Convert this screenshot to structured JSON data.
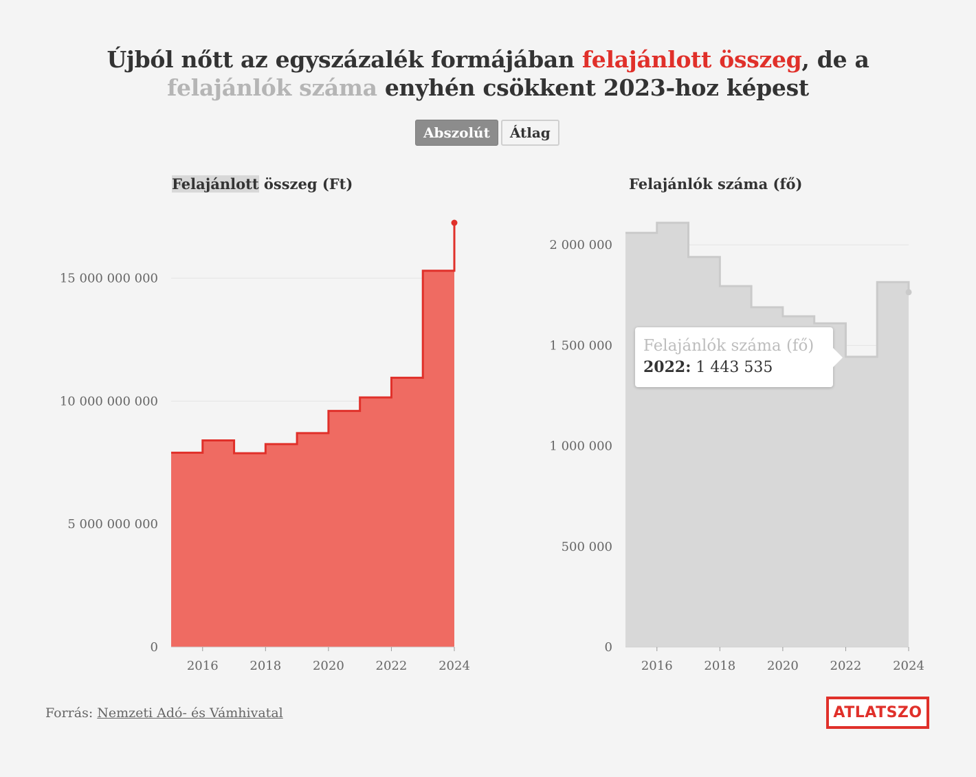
{
  "title": {
    "part1": "Újból nőtt az egyszázalék formájában ",
    "red": "felajánlott összeg",
    "part2": ", de a ",
    "gray": "felajánlók száma",
    "part3": " enyhén csökkent 2023-hoz képest"
  },
  "toggle": {
    "absolute_label": "Abszolút",
    "average_label": "Átlag"
  },
  "colors": {
    "red_line": "#e0302a",
    "red_fill": "#ef6b62",
    "gray_line": "#cacaca",
    "gray_fill": "#d8d8d8"
  },
  "chart_data": [
    {
      "type": "area",
      "step": true,
      "title_highlight": "Felajánlott",
      "title_rest": " összeg (Ft)",
      "x": [
        2015,
        2016,
        2017,
        2018,
        2019,
        2020,
        2021,
        2022,
        2023,
        2024
      ],
      "values": [
        7900000000,
        8400000000,
        7880000000,
        8250000000,
        8700000000,
        9600000000,
        10150000000,
        10950000000,
        15300000000,
        17250000000
      ],
      "ylim": [
        0,
        17250000000
      ],
      "yticks": [
        0,
        5000000000,
        10000000000,
        15000000000
      ],
      "ytick_labels": [
        "0",
        "5 000 000 000",
        "10 000 000 000",
        "15 000 000 000"
      ],
      "xticks": [
        2016,
        2018,
        2020,
        2022,
        2024
      ],
      "xtick_labels": [
        "2016",
        "2018",
        "2020",
        "2022",
        "2024"
      ]
    },
    {
      "type": "area",
      "step": true,
      "title": "Felajánlók száma (fő)",
      "x": [
        2015,
        2016,
        2017,
        2018,
        2019,
        2020,
        2021,
        2022,
        2023,
        2024
      ],
      "values": [
        2060000,
        2110000,
        1940000,
        1795000,
        1690000,
        1645000,
        1610000,
        1443535,
        1815000,
        1765000
      ],
      "ylim": [
        0,
        2110000
      ],
      "yticks": [
        0,
        500000,
        1000000,
        1500000,
        2000000
      ],
      "ytick_labels": [
        "0",
        "500 000",
        "1 000 000",
        "1 500 000",
        "2 000 000"
      ],
      "xticks": [
        2016,
        2018,
        2020,
        2022,
        2024
      ],
      "xtick_labels": [
        "2016",
        "2018",
        "2020",
        "2022",
        "2024"
      ],
      "tooltip": {
        "label": "Felajánlók száma (fő)",
        "year": "2022:",
        "value": "1 443 535"
      }
    }
  ],
  "source": {
    "prefix": "Forrás: ",
    "link_text": "Nemzeti Adó- és Vámhivatal"
  },
  "logo": {
    "text": "ATLATSZO"
  }
}
